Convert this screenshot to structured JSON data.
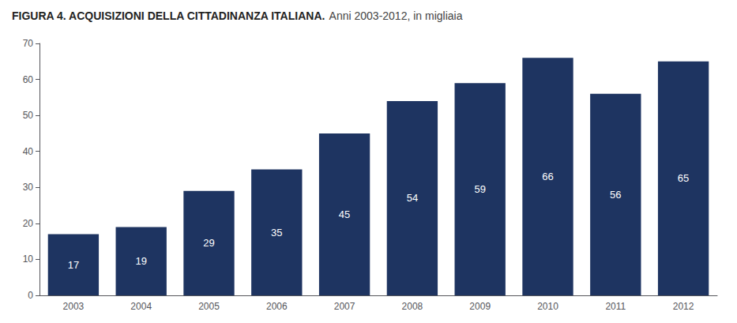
{
  "chart_data": {
    "type": "bar",
    "title": "FIGURA 4. ACQUISIZIONI DELLA CITTADINANZA ITALIANA.",
    "subtitle": " Anni 2003-2012, in migliaia",
    "categories": [
      "2003",
      "2004",
      "2005",
      "2006",
      "2007",
      "2008",
      "2009",
      "2010",
      "2011",
      "2012"
    ],
    "values": [
      17,
      19,
      29,
      35,
      45,
      54,
      59,
      66,
      56,
      65
    ],
    "color": "#1e3461",
    "ylim": [
      0,
      70
    ],
    "yticks": [
      0,
      10,
      20,
      30,
      40,
      50,
      60,
      70
    ],
    "grid": false,
    "data_labels": true
  }
}
